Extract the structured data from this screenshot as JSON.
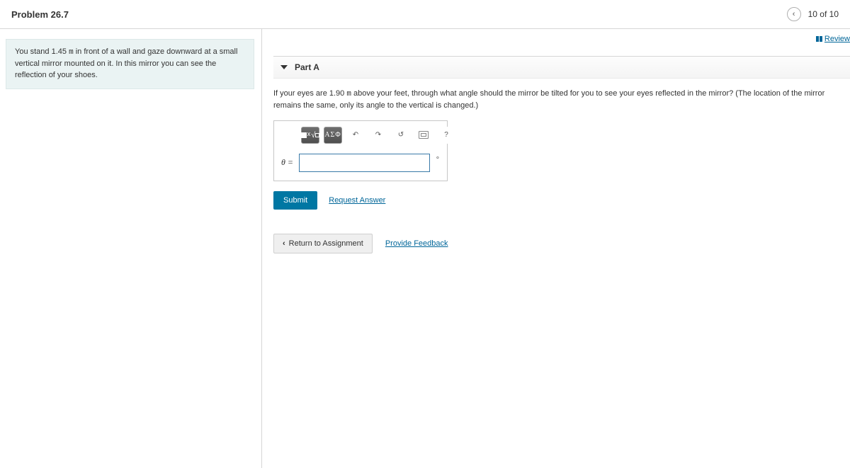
{
  "header": {
    "title": "Problem 26.7",
    "counter": "10 of 10"
  },
  "left": {
    "intro_html": "You stand 1.45 <span class=\"mono\">m</span> in front of a wall and gaze downward at a small vertical mirror mounted on it. In this mirror you can see the reflection of your shoes."
  },
  "right": {
    "review": "Review",
    "part_label": "Part A",
    "question_html": "If your eyes are 1.90 <span class=\"mono\">m</span> above your feet, through what angle should the mirror be tilted for you to see your eyes reflected in the mirror? (The location of the mirror remains the same, only its angle to the vertical is changed.)",
    "toolbar": {
      "template": "x√",
      "greek": "ΑΣΦ",
      "undo": "↶",
      "redo": "↷",
      "reset": "↺",
      "help": "?"
    },
    "equation": {
      "lhs": "θ =",
      "value": "",
      "unit": "∘"
    },
    "actions": {
      "submit": "Submit",
      "request": "Request Answer"
    },
    "footer": {
      "return": "Return to Assignment",
      "feedback": "Provide Feedback"
    }
  }
}
